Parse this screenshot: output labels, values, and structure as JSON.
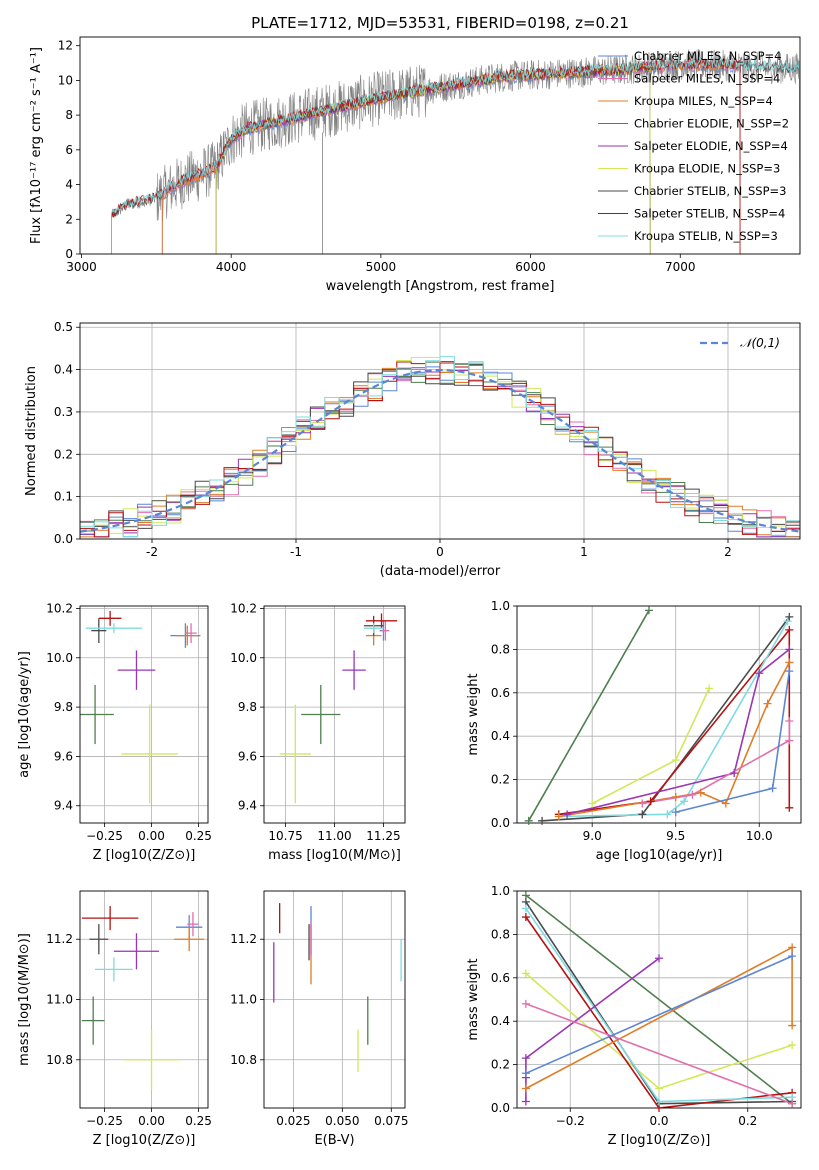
{
  "figure_title": "PLATE=1712, MJD=53531, FIBERID=0198, z=0.21",
  "colors": {
    "chabrier_miles": "#5b86d6",
    "salpeter_miles": "#e26fae",
    "kroupa_miles": "#e07c25",
    "chabrier_elodie": "#4f7e4f",
    "salpeter_elodie": "#9a35b3",
    "kroupa_elodie": "#d2e85a",
    "chabrier_stelib": "#4a4a4a",
    "salpeter_stelib": "#b41212",
    "kroupa_stelib": "#7fdbe0",
    "data_grey": "#808080",
    "normal": "#5b86d6"
  },
  "chart_data": [
    {
      "id": "spectrum",
      "type": "line",
      "title": "PLATE=1712, MJD=53531, FIBERID=0198, z=0.21",
      "xlabel": "wavelength [Angstrom, rest frame]",
      "ylabel": "Flux [fλ10⁻¹⁷ erg cm⁻² s⁻¹ A⁻¹]",
      "xlim": [
        2990,
        7800
      ],
      "ylim": [
        0,
        12.5
      ],
      "xticks": [
        3000,
        4000,
        5000,
        6000,
        7000
      ],
      "yticks": [
        0,
        2,
        4,
        6,
        8,
        10,
        12
      ],
      "legend_position": "top-right",
      "legend": [
        "Chabrier MILES, N_SSP=4",
        "Salpeter MILES, N_SSP=4",
        "Kroupa MILES, N_SSP=4",
        "Chabrier ELODIE, N_SSP=2",
        "Salpeter ELODIE, N_SSP=4",
        "Kroupa ELODIE, N_SSP=3",
        "Chabrier STELIB, N_SSP=3",
        "Salpeter STELIB, N_SSP=4",
        "Kroupa STELIB, N_SSP=3"
      ],
      "continuum_x": [
        3200,
        3300,
        3400,
        3500,
        3600,
        3700,
        3800,
        3900,
        4000,
        4100,
        4200,
        4400,
        4600,
        4800,
        5000,
        5200,
        5400,
        5600,
        5800,
        6000,
        6200,
        6400,
        6600,
        6800,
        7000,
        7200,
        7400,
        7600,
        7800
      ],
      "continuum_y": [
        2.2,
        2.8,
        3.0,
        3.2,
        3.8,
        4.3,
        4.6,
        5.0,
        6.6,
        7.2,
        7.4,
        7.8,
        8.2,
        8.6,
        9.0,
        9.3,
        9.6,
        9.9,
        10.2,
        10.3,
        10.4,
        10.5,
        10.6,
        10.8,
        10.9,
        10.9,
        10.8,
        10.7,
        10.7
      ]
    },
    {
      "id": "residuals",
      "type": "bar",
      "xlabel": "(data-model)/error",
      "ylabel": "Normed distribution",
      "xlim": [
        -2.5,
        2.5
      ],
      "ylim": [
        0,
        0.51
      ],
      "xticks": [
        -2,
        -1,
        0,
        1,
        2
      ],
      "yticks": [
        0.0,
        0.1,
        0.2,
        0.3,
        0.4,
        0.5
      ],
      "legend_position": "top-right",
      "legend": [
        "𝒩(0,1)"
      ],
      "bin_width": 0.1
    },
    {
      "id": "age_vs_Z",
      "type": "scatter",
      "xlabel": "Z [log10(Z/Z⊙)]",
      "ylabel": "age  [log10(age/yr)]",
      "xlim": [
        -0.38,
        0.3
      ],
      "ylim": [
        9.33,
        10.21
      ],
      "xticks": [
        -0.25,
        0.0,
        0.25
      ],
      "xticklabels": [
        "−0.25",
        "0.00",
        "0.25"
      ],
      "yticks": [
        9.4,
        9.6,
        9.8,
        10.0,
        10.2
      ],
      "points": [
        {
          "model": "chabrier_miles",
          "x": 0.18,
          "y": 10.09,
          "xerr": 0.08,
          "yerr": 0.05
        },
        {
          "model": "salpeter_miles",
          "x": 0.21,
          "y": 10.1,
          "xerr": 0.03,
          "yerr": 0.04
        },
        {
          "model": "kroupa_miles",
          "x": 0.19,
          "y": 10.09,
          "xerr": 0.06,
          "yerr": 0.04
        },
        {
          "model": "chabrier_elodie",
          "x": -0.3,
          "y": 9.77,
          "xerr": 0.1,
          "yerr": 0.12
        },
        {
          "model": "salpeter_elodie",
          "x": -0.08,
          "y": 9.95,
          "xerr": 0.1,
          "yerr": 0.08
        },
        {
          "model": "kroupa_elodie",
          "x": -0.01,
          "y": 9.61,
          "xerr": 0.15,
          "yerr": 0.2
        },
        {
          "model": "chabrier_stelib",
          "x": -0.28,
          "y": 10.11,
          "xerr": 0.04,
          "yerr": 0.05
        },
        {
          "model": "salpeter_stelib",
          "x": -0.22,
          "y": 10.16,
          "xerr": 0.06,
          "yerr": 0.03
        },
        {
          "model": "kroupa_stelib",
          "x": -0.2,
          "y": 10.12,
          "xerr": 0.15,
          "yerr": 0.02
        }
      ]
    },
    {
      "id": "age_vs_mass",
      "type": "scatter",
      "xlabel": "mass [log10(M/M⊙)]",
      "ylabel": "",
      "xlim": [
        10.64,
        11.36
      ],
      "ylim": [
        9.33,
        10.21
      ],
      "xticks": [
        10.75,
        11.0,
        11.25
      ],
      "xticklabels": [
        "10.75",
        "11.00",
        "11.25"
      ],
      "yticks": [
        9.4,
        9.6,
        9.8,
        10.0,
        10.2
      ],
      "points": [
        {
          "model": "chabrier_miles",
          "x": 11.25,
          "y": 10.11,
          "xerr": 0.02,
          "yerr": 0.04
        },
        {
          "model": "salpeter_miles",
          "x": 11.26,
          "y": 10.11,
          "xerr": 0.02,
          "yerr": 0.04
        },
        {
          "model": "kroupa_miles",
          "x": 11.2,
          "y": 10.09,
          "xerr": 0.04,
          "yerr": 0.04
        },
        {
          "model": "chabrier_elodie",
          "x": 10.93,
          "y": 9.77,
          "xerr": 0.1,
          "yerr": 0.12
        },
        {
          "model": "salpeter_elodie",
          "x": 11.1,
          "y": 9.95,
          "xerr": 0.06,
          "yerr": 0.08
        },
        {
          "model": "kroupa_elodie",
          "x": 10.8,
          "y": 9.61,
          "xerr": 0.08,
          "yerr": 0.2
        },
        {
          "model": "chabrier_stelib",
          "x": 11.2,
          "y": 10.13,
          "xerr": 0.05,
          "yerr": 0.04
        },
        {
          "model": "salpeter_stelib",
          "x": 11.24,
          "y": 10.15,
          "xerr": 0.08,
          "yerr": 0.03
        },
        {
          "model": "kroupa_stelib",
          "x": 11.2,
          "y": 10.12,
          "xerr": 0.05,
          "yerr": 0.02
        }
      ]
    },
    {
      "id": "mass_weight_vs_age",
      "type": "line",
      "xlabel": "age  [log10(age/yr)]",
      "ylabel": "mass weight",
      "xlim": [
        8.55,
        10.25
      ],
      "ylim": [
        0,
        1.0
      ],
      "xticks": [
        9.0,
        9.5,
        10.0
      ],
      "xticklabels": [
        "9.0",
        "9.5",
        "10.0"
      ],
      "yticks": [
        0.0,
        0.2,
        0.4,
        0.6,
        0.8,
        1.0
      ],
      "series": [
        {
          "model": "chabrier_elodie",
          "x": [
            8.62,
            9.34
          ],
          "y": [
            0.01,
            0.98
          ]
        },
        {
          "model": "kroupa_elodie",
          "x": [
            9.0,
            9.5,
            9.7
          ],
          "y": [
            0.09,
            0.29,
            0.62
          ]
        },
        {
          "model": "chabrier_stelib",
          "x": [
            8.7,
            9.3,
            10.18
          ],
          "y": [
            0.01,
            0.04,
            0.95
          ]
        },
        {
          "model": "salpeter_stelib",
          "x": [
            8.8,
            9.35,
            10.18,
            10.18
          ],
          "y": [
            0.04,
            0.1,
            0.89,
            0.07
          ]
        },
        {
          "model": "kroupa_stelib",
          "x": [
            8.8,
            9.45,
            9.55,
            10.17
          ],
          "y": [
            0.03,
            0.04,
            0.1,
            0.93
          ]
        },
        {
          "model": "salpeter_elodie",
          "x": [
            8.85,
            9.85,
            10.0,
            10.18
          ],
          "y": [
            0.04,
            0.23,
            0.69,
            0.8
          ]
        },
        {
          "model": "kroupa_miles",
          "x": [
            8.8,
            9.5,
            9.65,
            9.8,
            10.05,
            10.18
          ],
          "y": [
            0.03,
            0.12,
            0.14,
            0.09,
            0.55,
            0.74
          ]
        },
        {
          "model": "salpeter_miles",
          "x": [
            9.3,
            9.6,
            10.18,
            10.18
          ],
          "y": [
            0.09,
            0.13,
            0.38,
            0.47
          ]
        },
        {
          "model": "chabrier_miles",
          "x": [
            9.5,
            10.08,
            10.18
          ],
          "y": [
            0.05,
            0.16,
            0.7
          ]
        }
      ]
    },
    {
      "id": "mass_vs_Z",
      "type": "scatter",
      "xlabel": "Z [log10(Z/Z⊙)]",
      "ylabel": "mass [log10(M/M⊙)]",
      "xlim": [
        -0.38,
        0.3
      ],
      "ylim": [
        10.64,
        11.36
      ],
      "xticks": [
        -0.25,
        0.0,
        0.25
      ],
      "xticklabels": [
        "−0.25",
        "0.00",
        "0.25"
      ],
      "yticks": [
        10.8,
        11.0,
        11.2
      ],
      "points": [
        {
          "model": "chabrier_miles",
          "x": 0.2,
          "y": 11.24,
          "xerr": 0.07,
          "yerr": 0.04
        },
        {
          "model": "salpeter_miles",
          "x": 0.22,
          "y": 11.25,
          "xerr": 0.03,
          "yerr": 0.04
        },
        {
          "model": "kroupa_miles",
          "x": 0.2,
          "y": 11.2,
          "xerr": 0.08,
          "yerr": 0.04
        },
        {
          "model": "chabrier_elodie",
          "x": -0.31,
          "y": 10.93,
          "xerr": 0.06,
          "yerr": 0.08
        },
        {
          "model": "salpeter_elodie",
          "x": -0.08,
          "y": 11.16,
          "xerr": 0.12,
          "yerr": 0.06
        },
        {
          "model": "kroupa_elodie",
          "x": 0.0,
          "y": 10.8,
          "xerr": 0.15,
          "yerr": 0.1
        },
        {
          "model": "chabrier_stelib",
          "x": -0.28,
          "y": 11.2,
          "xerr": 0.05,
          "yerr": 0.05
        },
        {
          "model": "salpeter_stelib",
          "x": -0.22,
          "y": 11.27,
          "xerr": 0.15,
          "yerr": 0.04
        },
        {
          "model": "kroupa_stelib",
          "x": -0.2,
          "y": 11.1,
          "xerr": 0.1,
          "yerr": 0.04
        }
      ]
    },
    {
      "id": "mass_vs_ebv",
      "type": "scatter",
      "xlabel": "E(B-V)",
      "ylabel": "",
      "xlim": [
        0.01,
        0.082
      ],
      "ylim": [
        10.64,
        11.36
      ],
      "xticks": [
        0.025,
        0.05,
        0.075
      ],
      "xticklabels": [
        "0.025",
        "0.050",
        "0.075"
      ],
      "yticks": [
        10.8,
        11.0,
        11.2
      ],
      "points": [
        {
          "model": "chabrier_miles",
          "x": 0.034,
          "y": 11.23,
          "yerr": 0.08
        },
        {
          "model": "kroupa_miles",
          "x": 0.034,
          "y": 11.15,
          "yerr": 0.1
        },
        {
          "model": "salpeter_miles",
          "x": 0.034,
          "y": 11.2,
          "yerr": 0.06
        },
        {
          "model": "chabrier_elodie",
          "x": 0.063,
          "y": 10.93,
          "yerr": 0.08
        },
        {
          "model": "salpeter_elodie",
          "x": 0.015,
          "y": 11.09,
          "yerr": 0.1
        },
        {
          "model": "kroupa_elodie",
          "x": 0.058,
          "y": 10.83,
          "yerr": 0.07
        },
        {
          "model": "chabrier_stelib",
          "x": 0.033,
          "y": 11.19,
          "yerr": 0.06
        },
        {
          "model": "salpeter_stelib",
          "x": 0.018,
          "y": 11.27,
          "yerr": 0.05
        },
        {
          "model": "kroupa_stelib",
          "x": 0.08,
          "y": 11.13,
          "yerr": 0.07
        }
      ]
    },
    {
      "id": "mass_weight_vs_Z",
      "type": "line",
      "xlabel": "Z [log10(Z/Z⊙)]",
      "ylabel": "mass weight",
      "xlim": [
        -0.32,
        0.32
      ],
      "ylim": [
        0,
        1.0
      ],
      "xticks": [
        -0.2,
        0.0,
        0.2
      ],
      "xticklabels": [
        "−0.2",
        "0.0",
        "0.2"
      ],
      "yticks": [
        0.0,
        0.2,
        0.4,
        0.6,
        0.8,
        1.0
      ],
      "series": [
        {
          "model": "chabrier_elodie",
          "x": [
            -0.3,
            0.3
          ],
          "y": [
            0.98,
            0.02
          ]
        },
        {
          "model": "kroupa_elodie",
          "x": [
            -0.3,
            0.0,
            0.3
          ],
          "y": [
            0.62,
            0.09,
            0.29
          ]
        },
        {
          "model": "chabrier_stelib",
          "x": [
            -0.3,
            0.0,
            0.3
          ],
          "y": [
            0.95,
            0.02,
            0.03
          ]
        },
        {
          "model": "salpeter_stelib",
          "x": [
            -0.3,
            0.0,
            0.3
          ],
          "y": [
            0.88,
            0.0,
            0.07
          ]
        },
        {
          "model": "kroupa_stelib",
          "x": [
            -0.3,
            0.0,
            0.3
          ],
          "y": [
            0.92,
            0.03,
            0.05
          ]
        },
        {
          "model": "salpeter_elodie",
          "x": [
            -0.3,
            -0.3,
            -0.3,
            0.0
          ],
          "y": [
            0.03,
            0.14,
            0.23,
            0.69
          ]
        },
        {
          "model": "kroupa_miles",
          "x": [
            -0.3,
            0.3,
            0.3
          ],
          "y": [
            0.09,
            0.74,
            0.38
          ]
        },
        {
          "model": "salpeter_miles",
          "x": [
            -0.3,
            0.3
          ],
          "y": [
            0.48,
            0.02
          ]
        },
        {
          "model": "chabrier_miles",
          "x": [
            -0.3,
            0.3
          ],
          "y": [
            0.16,
            0.7
          ]
        }
      ]
    }
  ]
}
